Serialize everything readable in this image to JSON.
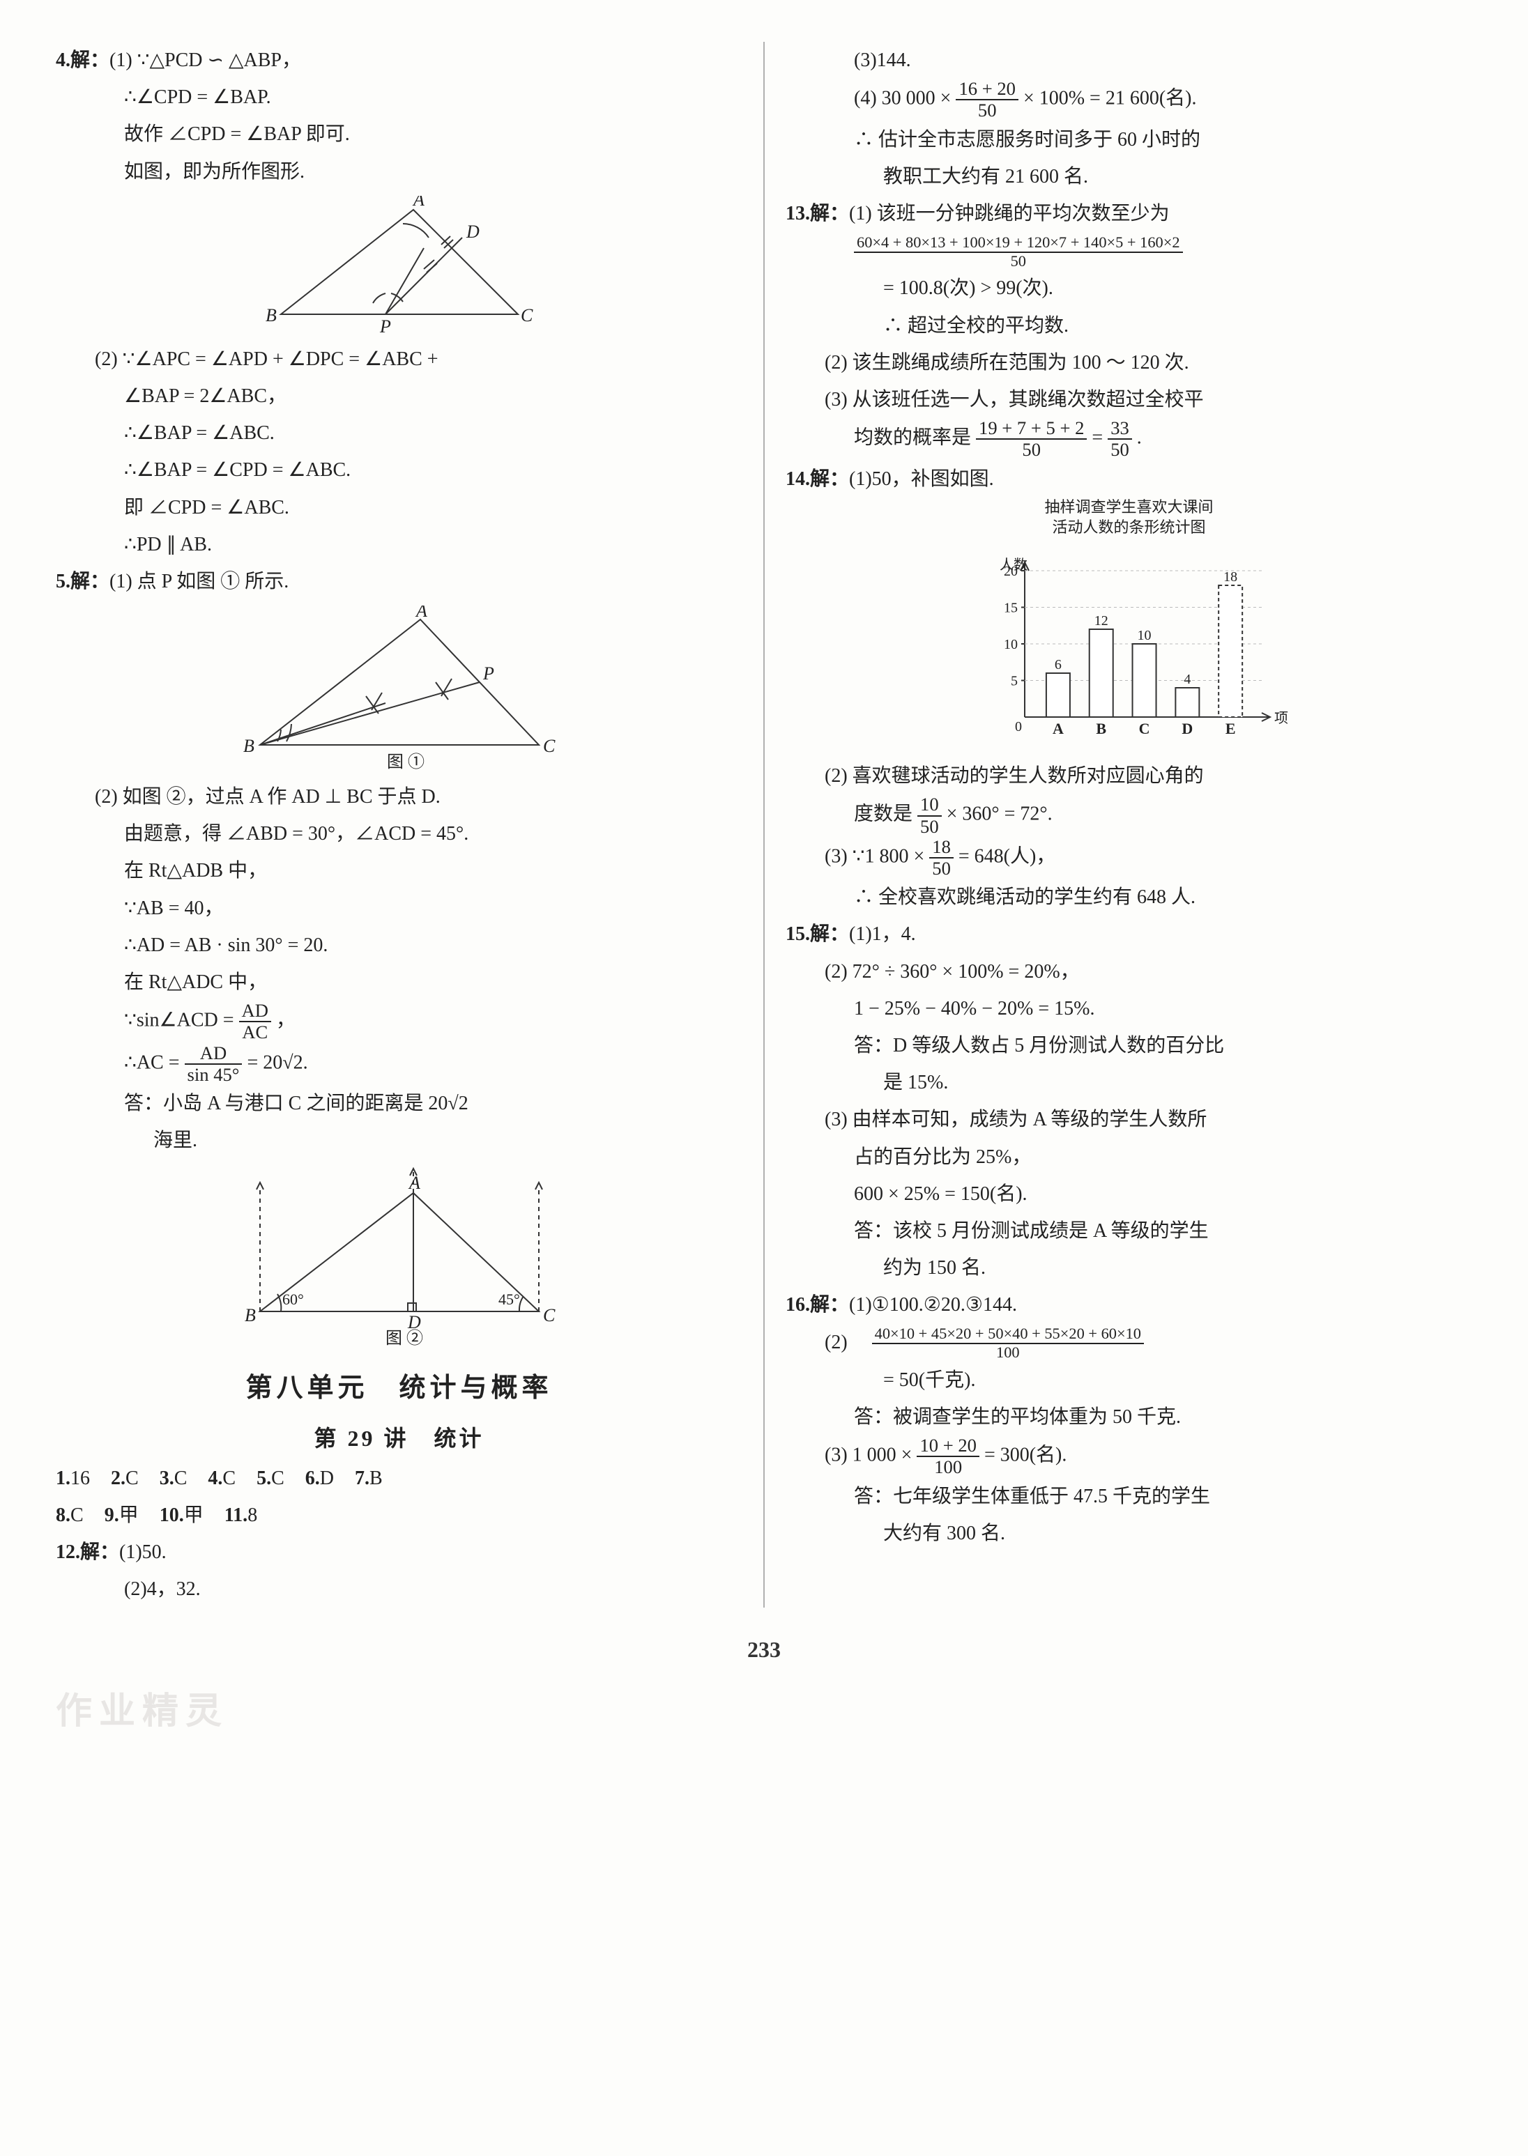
{
  "left": {
    "q4": {
      "label": "4.解：",
      "p1a": "(1) ∵△PCD ∽ △ABP，",
      "p1b": "∴∠CPD = ∠BAP.",
      "p1c": "故作 ∠CPD = ∠BAP 即可.",
      "p1d": "如图，即为所作图形.",
      "p2a": "(2) ∵∠APC = ∠APD + ∠DPC = ∠ABC +",
      "p2b": "∠BAP = 2∠ABC，",
      "p2c": "∴∠BAP = ∠ABC.",
      "p2d": "∴∠BAP = ∠CPD = ∠ABC.",
      "p2e": "即 ∠CPD = ∠ABC.",
      "p2f": "∴PD ∥ AB."
    },
    "q5": {
      "label": "5.解：",
      "p1a": "(1) 点 P 如图 ① 所示.",
      "fig1_caption": "图 ①",
      "p2a": "(2) 如图 ②，过点 A 作 AD ⊥ BC 于点 D.",
      "p2b": "由题意，得 ∠ABD = 30°，∠ACD = 45°.",
      "p2c": "在 Rt△ADB 中，",
      "p2d": "∵AB = 40，",
      "p2e": "∴AD = AB · sin 30° = 20.",
      "p2f": "在 Rt△ADC 中，",
      "p2g_pre": "∵sin∠ACD = ",
      "p2g_num": "AD",
      "p2g_den": "AC",
      "p2g_post": "，",
      "p2h_pre": "∴AC = ",
      "p2h_num": "AD",
      "p2h_den": "sin 45°",
      "p2h_post": " = 20√2.",
      "p2i": "答：小岛 A 与港口 C 之间的距离是 20√2",
      "p2j": "海里.",
      "fig2_caption": "图 ②"
    },
    "unit_title": "第八单元　统计与概率",
    "lesson_title": "第 29 讲　统计",
    "answers": {
      "r1": [
        {
          "n": "1.",
          "v": "16"
        },
        {
          "n": "2.",
          "v": "C"
        },
        {
          "n": "3.",
          "v": "C"
        },
        {
          "n": "4.",
          "v": "C"
        },
        {
          "n": "5.",
          "v": "C"
        },
        {
          "n": "6.",
          "v": "D"
        },
        {
          "n": "7.",
          "v": "B"
        }
      ],
      "r2": [
        {
          "n": "8.",
          "v": "C"
        },
        {
          "n": "9.",
          "v": "甲"
        },
        {
          "n": "10.",
          "v": "甲"
        },
        {
          "n": "11.",
          "v": "8"
        }
      ]
    },
    "q12": {
      "label": "12.解：",
      "a": "(1)50.",
      "b": "(2)4，32."
    }
  },
  "right": {
    "q12c": "(3)144.",
    "q12d_pre": "(4) 30 000 × ",
    "q12d_num": "16 + 20",
    "q12d_den": "50",
    "q12d_post": " × 100% = 21 600(名).",
    "q12e": "∴ 估计全市志愿服务时间多于 60 小时的",
    "q12f": "教职工大约有 21 600 名.",
    "q13": {
      "label": "13.解：",
      "a": "(1) 该班一分钟跳绳的平均次数至少为",
      "b_num": "60×4 + 80×13 + 100×19 + 120×7 + 140×5 + 160×2",
      "b_den": "50",
      "c": "= 100.8(次) > 99(次).",
      "d": "∴ 超过全校的平均数.",
      "e": "(2) 该生跳绳成绩所在范围为 100 ～ 120 次.",
      "f": "(3) 从该班任选一人，其跳绳次数超过全校平",
      "g_pre": "均数的概率是",
      "g_num": "19 + 7 + 5 + 2",
      "g_den": "50",
      "g_mid": " = ",
      "g_num2": "33",
      "g_den2": "50",
      "g_post": "."
    },
    "q14": {
      "label": "14.解：",
      "a": "(1)50，补图如图.",
      "chart_title1": "抽样调查学生喜欢大课间",
      "chart_title2": "活动人数的条形统计图",
      "y_label": "人数",
      "x_label": "项目",
      "y_ticks": [
        "5",
        "10",
        "15",
        "20"
      ],
      "categories": [
        "A",
        "B",
        "C",
        "D",
        "E"
      ],
      "values": [
        6,
        12,
        10,
        4,
        18
      ],
      "bar_labels": [
        "6",
        "12",
        "10",
        "4",
        "18"
      ],
      "bar_color": "#ffffff",
      "bar_border": "#333333",
      "axis_color": "#333333",
      "dashed_bar_index": 4,
      "b_pre": "(2) 喜欢毽球活动的学生人数所对应圆心角的",
      "b2_pre": "度数是",
      "b2_num": "10",
      "b2_den": "50",
      "b2_post": " × 360° = 72°.",
      "c_pre": "(3) ∵1 800 × ",
      "c_num": "18",
      "c_den": "50",
      "c_post": " = 648(人)，",
      "d": "∴ 全校喜欢跳绳活动的学生约有 648 人."
    },
    "q15": {
      "label": "15.解：",
      "a": "(1)1，4.",
      "b": "(2) 72° ÷ 360° × 100% = 20%，",
      "c": "1 − 25% − 40% − 20% = 15%.",
      "d": "答：D 等级人数占 5 月份测试人数的百分比",
      "e": "是 15%.",
      "f": "(3) 由样本可知，成绩为 A 等级的学生人数所",
      "g": "占的百分比为 25%，",
      "h": "600 × 25% = 150(名).",
      "i": "答：该校 5 月份测试成绩是 A 等级的学生",
      "j": "约为 150 名."
    },
    "q16": {
      "label": "16.解：",
      "a": "(1)①100.②20.③144.",
      "b_pre": "(2)　",
      "b_num": "40×10 + 45×20 + 50×40 + 55×20 + 60×10",
      "b_den": "100",
      "c": "= 50(千克).",
      "d": "答：被调查学生的平均体重为 50 千克.",
      "e_pre": "(3) 1 000 × ",
      "e_num": "10 + 20",
      "e_den": "100",
      "e_post": " = 300(名).",
      "f": "答：七年级学生体重低于 47.5 千克的学生",
      "g": "大约有 300 名."
    }
  },
  "page_number": "233",
  "watermark": "作业精灵",
  "fig4": {
    "labels": {
      "A": "A",
      "B": "B",
      "C": "C",
      "D": "D",
      "P": "P"
    },
    "stroke": "#333333"
  },
  "fig5a": {
    "labels": {
      "A": "A",
      "B": "B",
      "C": "C",
      "P": "P"
    },
    "stroke": "#333333"
  },
  "fig5b": {
    "labels": {
      "A": "A",
      "B": "B",
      "C": "C",
      "D": "D",
      "ang1": "60°",
      "ang2": "45°"
    },
    "stroke": "#333333"
  }
}
